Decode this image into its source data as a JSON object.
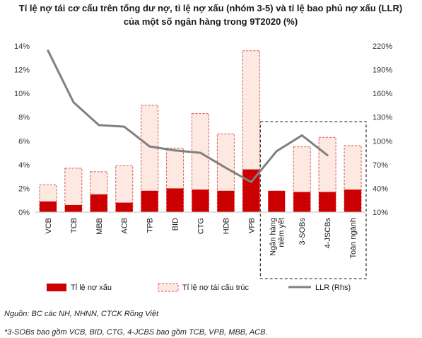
{
  "chart_data": {
    "type": "bar",
    "title_line1": "Tỉ lệ nợ tái cơ cấu trên tổng dư nợ, tỉ lệ nợ xấu (nhóm 3-5) và tỉ lệ bao phủ nợ xấu (LLR)",
    "title_line2": "của một số ngân hàng trong 9T2020 (%)",
    "categories": [
      [
        "VCB"
      ],
      [
        "TCB"
      ],
      [
        "MBB"
      ],
      [
        "ACB"
      ],
      [
        "TPB"
      ],
      [
        "BID"
      ],
      [
        "CTG"
      ],
      [
        "HDB"
      ],
      [
        "VPB"
      ],
      [
        "Ngân hàng",
        "niêm yết"
      ],
      [
        "3-SOBs"
      ],
      [
        "4-JSCBs"
      ],
      [
        "Toàn ngành"
      ]
    ],
    "series": [
      {
        "name": "Tỉ lệ nợ xấu",
        "axis": "left",
        "kind": "bar",
        "values": [
          0.9,
          0.6,
          1.5,
          0.8,
          1.8,
          2.0,
          1.9,
          1.8,
          3.6,
          1.8,
          1.7,
          1.7,
          1.9
        ]
      },
      {
        "name": "Tỉ lệ nợ tái cấu trúc",
        "axis": "left",
        "kind": "bar-total",
        "values": [
          2.3,
          3.7,
          3.4,
          3.9,
          9.0,
          5.4,
          8.3,
          6.6,
          13.6,
          null,
          5.5,
          6.3,
          5.6
        ]
      },
      {
        "name": "LLR (Rhs)",
        "axis": "right",
        "kind": "line",
        "values": [
          214,
          149,
          120,
          118,
          93,
          88,
          85,
          66,
          48,
          87,
          107,
          82,
          null
        ]
      }
    ],
    "y_left": {
      "min": 0,
      "max": 14,
      "step": 2,
      "ticks": [
        "0%",
        "2%",
        "4%",
        "6%",
        "8%",
        "10%",
        "12%",
        "14%"
      ]
    },
    "y_right": {
      "min": 10,
      "max": 220,
      "step": 30,
      "ticks": [
        "10%",
        "40%",
        "70%",
        "100%",
        "130%",
        "160%",
        "190%",
        "220%"
      ]
    },
    "colors": {
      "npl": "#cc0000",
      "restructured_fill": "#fde9e1",
      "restructured_stroke": "#d9534f",
      "llr": "#808080",
      "axis": "#bfbfbf"
    },
    "highlight_group": "dashed box around Ngân hàng niêm yết, 3-SOBs, 4-JSCBs, Toàn ngành",
    "legend_position": "bottom",
    "grid": false,
    "source": "Nguồn: BC các NH, NHNN, CTCK Rồng Việt",
    "note": "*3-SOBs bao gồm VCB, BID, CTG, 4-JCBS bao gồm TCB, VPB, MBB, ACB."
  }
}
